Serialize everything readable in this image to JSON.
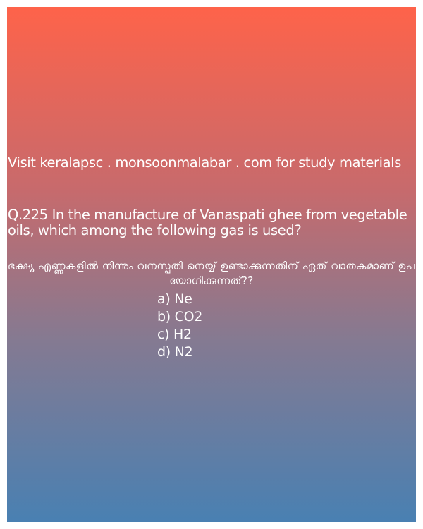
{
  "promo_text": "Visit keralapsc . monsoonmalabar . com for study materials",
  "question": {
    "text": "Q.225 In the manufacture of Vanaspati ghee from vegetable oils, which among the following gas is used?",
    "malayalam_text": "ഭക്ഷ്യ എണ്ണകളിൽ നിന്നും വനസ്പതി നെയ്യ് ഉണ്ടാക്കുന്നതിന് ഏത് വാതകമാണ് ഉപയോഗിക്കുന്നത്??"
  },
  "options": [
    "a) Ne",
    "b) CO2",
    "c) H2",
    "d) N2"
  ]
}
